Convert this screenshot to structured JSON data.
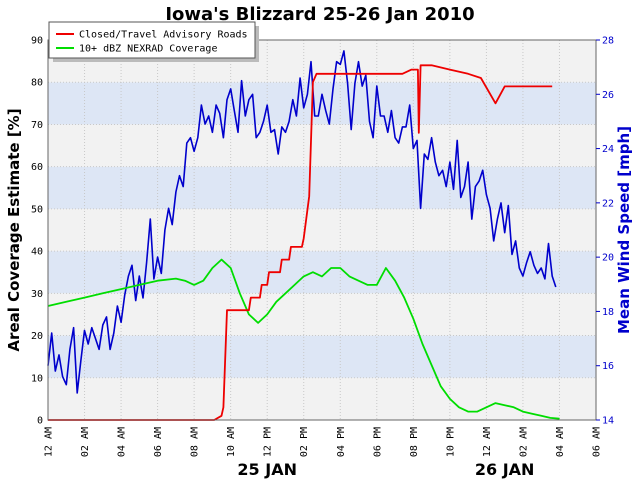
{
  "chart_data": {
    "type": "line",
    "title": "Iowa's Blizzard 25-26 Jan 2010",
    "ylabel_left": "Areal Coverage Estimate [%]",
    "ylabel_right": "Mean Wind Speed [mph]",
    "ylim_left": [
      0,
      90
    ],
    "ylim_right": [
      14,
      28
    ],
    "yticks_left": [
      "0",
      "10",
      "20",
      "30",
      "40",
      "50",
      "60",
      "70",
      "80",
      "90"
    ],
    "yticks_right": [
      "14",
      "16",
      "18",
      "20",
      "22",
      "24",
      "26",
      "28"
    ],
    "xlim_hours": [
      0,
      30
    ],
    "xtick_labels": [
      "12 AM",
      "02 AM",
      "04 AM",
      "06 AM",
      "08 AM",
      "10 AM",
      "12 PM",
      "02 PM",
      "04 PM",
      "06 PM",
      "08 PM",
      "10 PM",
      "12 AM",
      "02 AM",
      "04 AM",
      "06 AM"
    ],
    "date_labels": [
      {
        "hour": 12,
        "label": "25 JAN"
      },
      {
        "hour": 25,
        "label": "26 JAN"
      }
    ],
    "grid": true,
    "legend_position": "top-left",
    "colors": {
      "roads": "#ee0000",
      "nexrad": "#00dd00",
      "wind": "#0000cc",
      "band_light": "#f2f2f2",
      "band_blue": "#dde6f5"
    },
    "series": [
      {
        "name": "Closed/Travel Advisory Roads",
        "axis": "left",
        "x": [
          0,
          9.1,
          9.5,
          9.6,
          9.8,
          10.2,
          11.0,
          11.1,
          11.6,
          11.7,
          12.0,
          12.1,
          12.7,
          12.8,
          13.2,
          13.3,
          13.9,
          14.0,
          14.3,
          14.5,
          14.7,
          15.5,
          16.0,
          17.0,
          18.0,
          19.0,
          19.4,
          19.9,
          20.1,
          20.25,
          20.3,
          20.4,
          20.6,
          21.0,
          22.0,
          23.0,
          23.7,
          24.5,
          25.0,
          26.0,
          27.0,
          27.6
        ],
        "values": [
          0,
          0,
          1,
          3,
          26,
          26,
          26,
          29,
          29,
          32,
          32,
          35,
          35,
          38,
          38,
          41,
          41,
          43,
          53,
          80,
          82,
          82,
          82,
          82,
          82,
          82,
          82,
          83,
          83,
          83,
          68,
          84,
          84,
          84,
          83,
          82,
          81,
          75,
          79,
          79,
          79,
          79
        ]
      },
      {
        "name": "10+ dBZ NEXRAD Coverage",
        "axis": "left",
        "x": [
          0,
          1,
          2,
          3,
          4,
          5,
          6,
          7,
          7.5,
          8,
          8.5,
          9,
          9.5,
          10,
          10.5,
          11,
          11.5,
          12,
          12.5,
          13,
          13.5,
          14,
          14.5,
          15,
          15.5,
          16,
          16.5,
          17,
          17.5,
          18,
          18.5,
          19,
          19.5,
          20,
          20.5,
          21,
          21.5,
          22,
          22.5,
          23,
          23.5,
          24,
          24.5,
          25,
          25.5,
          26,
          26.5,
          27,
          27.5,
          28
        ],
        "values": [
          27,
          28,
          29,
          30,
          31,
          32,
          33,
          33.5,
          33,
          32,
          33,
          36,
          38,
          36,
          30,
          25,
          23,
          25,
          28,
          30,
          32,
          34,
          35,
          34,
          36,
          36,
          34,
          33,
          32,
          32,
          36,
          33,
          29,
          24,
          18,
          13,
          8,
          5,
          3,
          2,
          2,
          3,
          4,
          3.5,
          3,
          2,
          1.5,
          1,
          0.5,
          0.3
        ]
      },
      {
        "name": "Mean Wind Speed",
        "axis": "right",
        "x": [
          0,
          0.2,
          0.4,
          0.6,
          0.8,
          1.0,
          1.2,
          1.4,
          1.6,
          1.8,
          2.0,
          2.2,
          2.4,
          2.6,
          2.8,
          3.0,
          3.2,
          3.4,
          3.6,
          3.8,
          4.0,
          4.2,
          4.4,
          4.6,
          4.8,
          5.0,
          5.2,
          5.4,
          5.6,
          5.8,
          6.0,
          6.2,
          6.4,
          6.6,
          6.8,
          7.0,
          7.2,
          7.4,
          7.6,
          7.8,
          8.0,
          8.2,
          8.4,
          8.6,
          8.8,
          9.0,
          9.2,
          9.4,
          9.6,
          9.8,
          10.0,
          10.2,
          10.4,
          10.6,
          10.8,
          11.0,
          11.2,
          11.4,
          11.6,
          11.8,
          12.0,
          12.2,
          12.4,
          12.6,
          12.8,
          13.0,
          13.2,
          13.4,
          13.6,
          13.8,
          14.0,
          14.2,
          14.4,
          14.6,
          14.8,
          15.0,
          15.2,
          15.4,
          15.6,
          15.8,
          16.0,
          16.2,
          16.4,
          16.6,
          16.8,
          17.0,
          17.2,
          17.4,
          17.6,
          17.8,
          18.0,
          18.2,
          18.4,
          18.6,
          18.8,
          19.0,
          19.2,
          19.4,
          19.6,
          19.8,
          20.0,
          20.2,
          20.4,
          20.6,
          20.8,
          21.0,
          21.2,
          21.4,
          21.6,
          21.8,
          22.0,
          22.2,
          22.4,
          22.6,
          22.8,
          23.0,
          23.2,
          23.4,
          23.6,
          23.8,
          24.0,
          24.2,
          24.4,
          24.6,
          24.8,
          25.0,
          25.2,
          25.4,
          25.6,
          25.8,
          26.0,
          26.2,
          26.4,
          26.6,
          26.8,
          27.0,
          27.2,
          27.4,
          27.6,
          27.8
        ],
        "values": [
          16.0,
          17.2,
          15.8,
          16.4,
          15.6,
          15.3,
          16.6,
          17.4,
          15.0,
          16.2,
          17.3,
          16.8,
          17.4,
          17.0,
          16.6,
          17.5,
          17.8,
          16.6,
          17.2,
          18.2,
          17.6,
          18.6,
          19.3,
          19.7,
          18.4,
          19.3,
          18.5,
          19.8,
          21.4,
          19.2,
          20.0,
          19.4,
          21.0,
          21.8,
          21.2,
          22.4,
          23.0,
          22.6,
          24.2,
          24.4,
          23.9,
          24.4,
          25.6,
          24.9,
          25.2,
          24.6,
          25.6,
          25.3,
          24.4,
          25.8,
          26.2,
          25.4,
          24.6,
          26.5,
          25.2,
          25.8,
          26.0,
          24.4,
          24.6,
          25.0,
          25.6,
          24.6,
          24.7,
          23.8,
          24.8,
          24.6,
          25.0,
          25.8,
          25.2,
          26.6,
          25.5,
          26.0,
          27.2,
          25.2,
          25.2,
          26.0,
          25.4,
          24.9,
          26.2,
          27.2,
          27.1,
          27.6,
          26.4,
          24.7,
          26.4,
          27.2,
          26.3,
          26.7,
          25.0,
          24.4,
          26.3,
          25.2,
          25.2,
          24.6,
          25.4,
          24.4,
          24.2,
          24.8,
          24.8,
          25.6,
          24.0,
          24.3,
          21.8,
          23.8,
          23.6,
          24.4,
          23.5,
          23.0,
          23.2,
          22.6,
          23.5,
          22.5,
          24.3,
          22.2,
          22.6,
          23.5,
          21.4,
          22.6,
          22.8,
          23.2,
          22.3,
          21.8,
          20.6,
          21.4,
          22.0,
          20.9,
          21.9,
          20.1,
          20.6,
          19.6,
          19.3,
          19.8,
          20.2,
          19.7,
          19.4,
          19.6,
          19.2,
          20.5,
          19.3,
          18.9
        ]
      }
    ]
  }
}
